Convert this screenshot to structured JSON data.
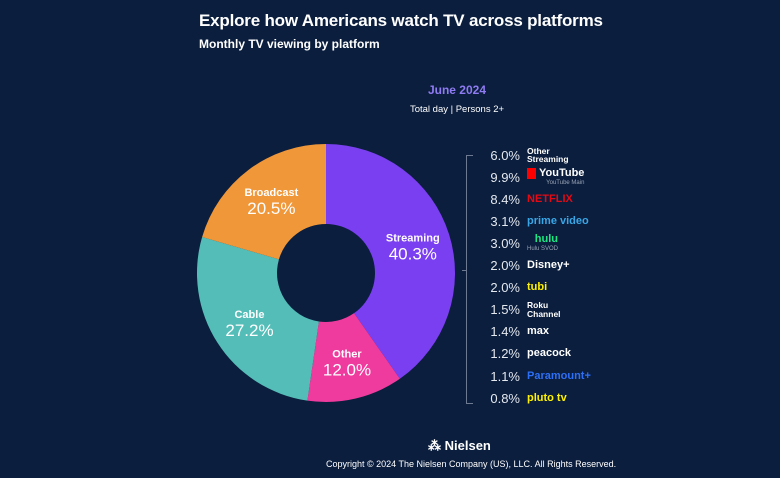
{
  "header": {
    "title": "Explore how Americans watch TV across platforms",
    "subtitle": "Monthly TV viewing by platform"
  },
  "chart_data": {
    "type": "pie",
    "style": "donut",
    "title": "June 2024",
    "subtitle": "Total day | Persons 2+",
    "slices": [
      {
        "label": "Streaming",
        "value": 40.3,
        "display": "40.3%",
        "color": "#7a3ff1"
      },
      {
        "label": "Other",
        "value": 12.0,
        "display": "12.0%",
        "color": "#ef3b9e"
      },
      {
        "label": "Cable",
        "value": 27.2,
        "display": "27.2%",
        "color": "#55bdb8"
      },
      {
        "label": "Broadcast",
        "value": 20.5,
        "display": "20.5%",
        "color": "#f0973a"
      }
    ],
    "streaming_breakdown": [
      {
        "label": "Other Streaming",
        "display": "6.0%",
        "value": 6.0,
        "logo_text": "Other\nStreaming",
        "color": "#ffffff"
      },
      {
        "label": "YouTube Main",
        "display": "9.9%",
        "value": 9.9,
        "logo_text": "YouTube",
        "color": "#ffffff"
      },
      {
        "label": "Netflix",
        "display": "8.4%",
        "value": 8.4,
        "logo_text": "NETFLIX",
        "color": "#e50914"
      },
      {
        "label": "Prime Video",
        "display": "3.1%",
        "value": 3.1,
        "logo_text": "prime video",
        "color": "#3aa6e6"
      },
      {
        "label": "Hulu SVOD",
        "display": "3.0%",
        "value": 3.0,
        "logo_text": "hulu",
        "color": "#1ce783"
      },
      {
        "label": "Disney+",
        "display": "2.0%",
        "value": 2.0,
        "logo_text": "Disney+",
        "color": "#ffffff"
      },
      {
        "label": "Tubi",
        "display": "2.0%",
        "value": 2.0,
        "logo_text": "tubi",
        "color": "#fff200"
      },
      {
        "label": "Roku Channel",
        "display": "1.5%",
        "value": 1.5,
        "logo_text": "Roku\nChannel",
        "color": "#ffffff"
      },
      {
        "label": "Max",
        "display": "1.4%",
        "value": 1.4,
        "logo_text": "max",
        "color": "#ffffff"
      },
      {
        "label": "Peacock",
        "display": "1.2%",
        "value": 1.2,
        "logo_text": "peacock",
        "color": "#ffffff"
      },
      {
        "label": "Paramount+",
        "display": "1.1%",
        "value": 1.1,
        "logo_text": "Paramount+",
        "color": "#2d6ff6"
      },
      {
        "label": "Pluto TV",
        "display": "0.8%",
        "value": 0.8,
        "logo_text": "pluto tv",
        "color": "#fff200"
      }
    ]
  },
  "footer": {
    "logo": "Nielsen",
    "copyright": "Copyright © 2024 The Nielsen Company (US), LLC. All Rights Reserved."
  }
}
